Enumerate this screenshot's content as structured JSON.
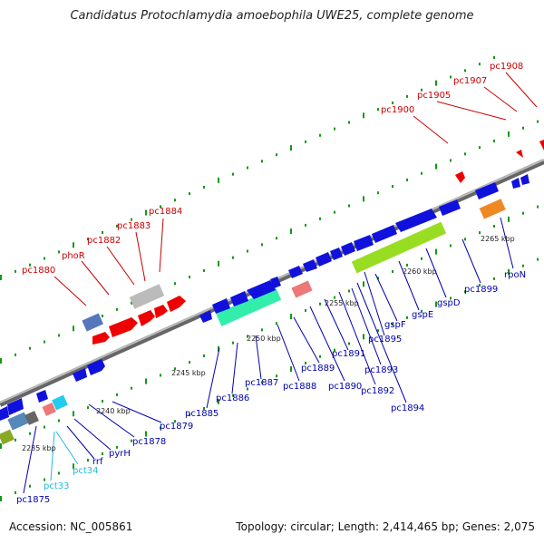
{
  "title": "Candidatus Protochlamydia amoebophila UWE25, complete genome",
  "accession": "Accession: NC_005861",
  "topology": "Topology: circular; Length: 2,414,465 bp; Genes: 2,075",
  "kbp_labels": [
    "2235 kbp",
    "2240 kbp",
    "2245 kbp",
    "2250 kbp",
    "2255 kbp",
    "2260 kbp",
    "2265 kbp"
  ],
  "top_labels": [
    "pc1880",
    "phoR",
    "pc1882",
    "pc1883",
    "pc1884",
    "pc1900",
    "pc1905",
    "pc1907",
    "pc1908"
  ],
  "bottom_labels": [
    "pc1875",
    "pct33",
    "pct34",
    "rrf",
    "pyrH",
    "pc1878",
    "pc1879",
    "pc1885",
    "pc1886",
    "pc1887",
    "pc1888",
    "pc1889",
    "pc1890",
    "pc1891",
    "pc1892",
    "pc1893",
    "pc1894",
    "pc1895",
    "gspF",
    "gspE",
    "gspD",
    "pc1899",
    "rpoN"
  ],
  "colors": {
    "forward_label": "#cc0000",
    "reverse_label": "#0000aa",
    "rna_label": "#22bbdd",
    "backbone": "#888888",
    "tick": "#119911"
  }
}
